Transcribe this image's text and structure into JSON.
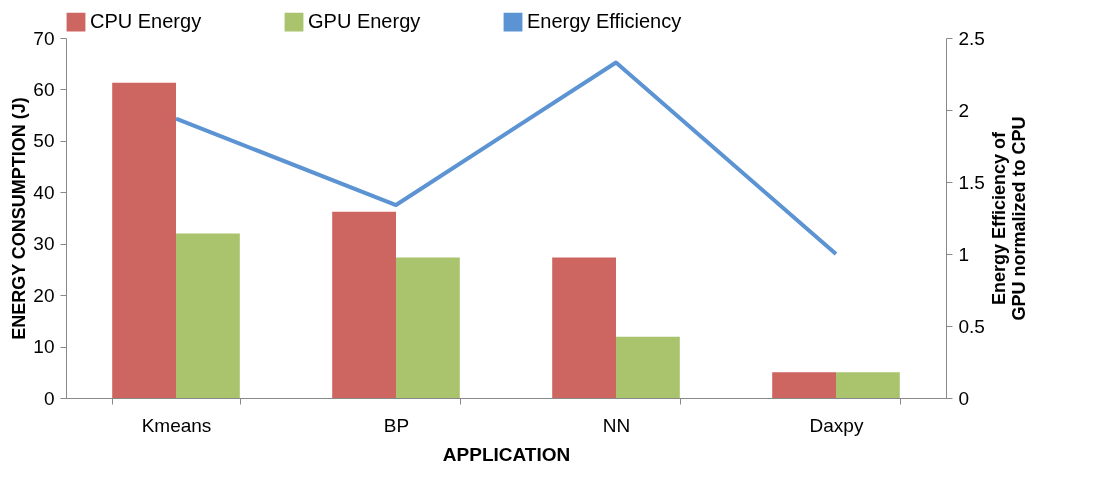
{
  "chart_data": {
    "type": "bar",
    "xlabel": "APPLICATION",
    "ylabel": "ENERGY CONSUMPTION (J)",
    "y2label": "Energy Efficiency of GPU normalized to CPU",
    "categories": [
      "Kmeans",
      "BP",
      "NN",
      "Daxpy"
    ],
    "series": [
      {
        "name": "CPU Energy",
        "color": "#cd6560",
        "values": [
          61.3,
          36.2,
          27.3,
          5.0
        ]
      },
      {
        "name": "GPU Energy",
        "color": "#a9c46c",
        "values": [
          32.0,
          27.3,
          11.9,
          5.0
        ]
      },
      {
        "name": "Energy Efficiency",
        "color": "#5b93d3",
        "type": "line",
        "axis": "y2",
        "values": [
          1.94,
          1.34,
          2.33,
          1.0
        ]
      }
    ],
    "ylim": [
      0,
      70
    ],
    "yticks": [
      0,
      10,
      20,
      30,
      40,
      50,
      60,
      70
    ],
    "y2lim": [
      0,
      2.5
    ],
    "y2ticks": [
      0,
      0.5,
      1,
      1.5,
      2,
      2.5
    ],
    "grid": false,
    "legend": "top"
  }
}
